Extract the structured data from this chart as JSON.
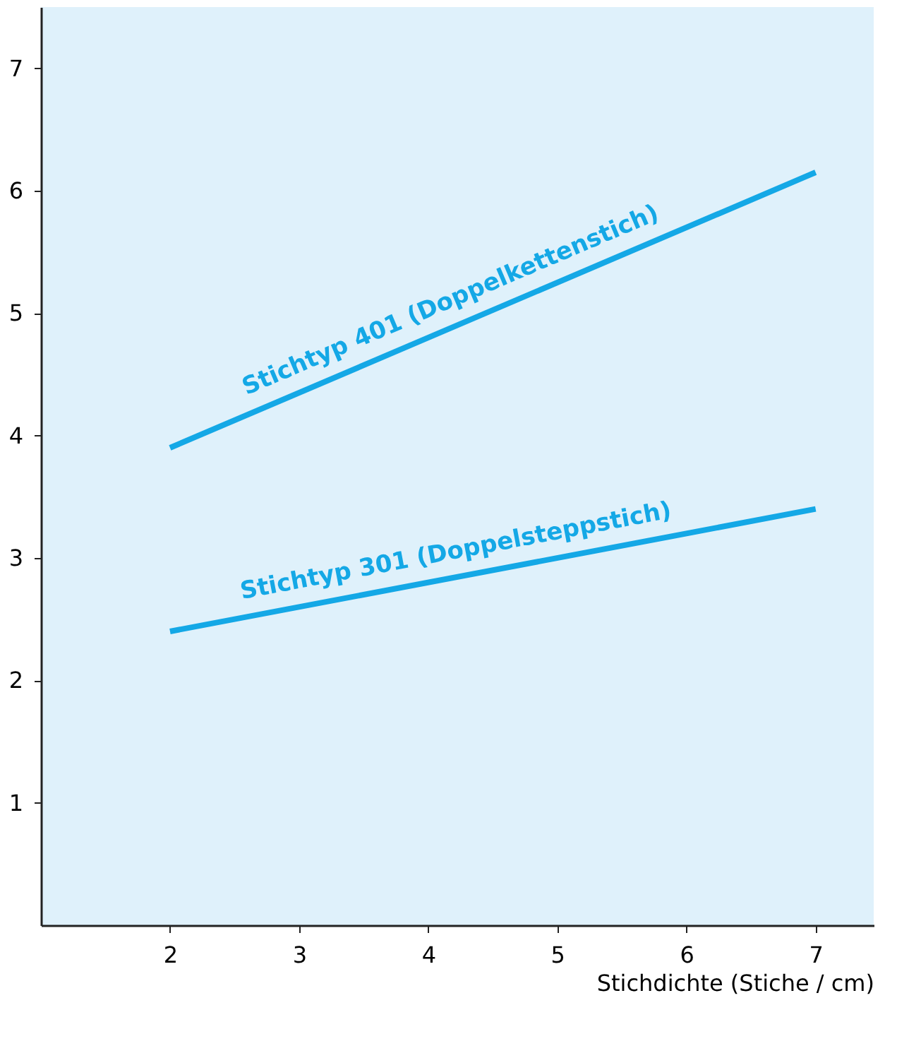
{
  "chart_data": {
    "type": "line",
    "xlabel": "Stichdichte (Stiche / cm)",
    "xlim": [
      1,
      7.45
    ],
    "ylim": [
      0,
      7.5
    ],
    "xticks": [
      2,
      3,
      4,
      5,
      6,
      7
    ],
    "yticks": [
      1,
      2,
      3,
      4,
      5,
      6,
      7
    ],
    "marker": "none",
    "line_style": "solid",
    "x": [
      2,
      7
    ],
    "series": [
      {
        "name": "Stichtyp 401 (Doppelkettenstich)",
        "color": "#14a8e6",
        "values": [
          3.9,
          6.15
        ]
      },
      {
        "name": "Stichtyp 301 (Doppelsteppstich)",
        "color": "#14a8e6",
        "values": [
          2.4,
          3.4
        ]
      }
    ]
  }
}
